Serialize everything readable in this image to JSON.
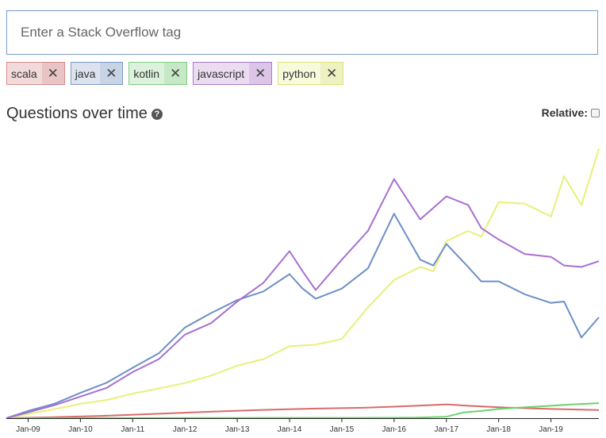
{
  "search": {
    "placeholder": "Enter a Stack Overflow tag"
  },
  "tags": [
    {
      "label": "scala",
      "bg": "#f2dada",
      "border": "#d98a8a",
      "xbg": "#e8c4c4"
    },
    {
      "label": "java",
      "bg": "#dce3ef",
      "border": "#7c9ac9",
      "xbg": "#c8d4e6"
    },
    {
      "label": "kotlin",
      "bg": "#dcf2dc",
      "border": "#7fce7f",
      "xbg": "#c6e8c6"
    },
    {
      "label": "javascript",
      "bg": "#ecdcf2",
      "border": "#a97cc9",
      "xbg": "#dcc5e8"
    },
    {
      "label": "python",
      "bg": "#f8fadc",
      "border": "#dde37a",
      "xbg": "#eef2c2"
    }
  ],
  "heading": {
    "title": "Questions over time",
    "help_icon": "question-circle-icon"
  },
  "relative": {
    "label": "Relative:",
    "checked": false
  },
  "chart_data": {
    "type": "line",
    "x_tick_labels": [
      "Jan-09",
      "Jan-10",
      "Jan-11",
      "Jan-12",
      "Jan-13",
      "Jan-14",
      "Jan-15",
      "Jan-16",
      "Jan-17",
      "Jan-18",
      "Jan-19"
    ],
    "xlim": [
      "2008-08",
      "2019-12"
    ],
    "ylim": [
      0,
      100
    ],
    "grid": false,
    "legend": "none",
    "series": [
      {
        "name": "scala",
        "color": "#d96b6b",
        "width": 2,
        "points": [
          [
            "2008-08",
            0
          ],
          [
            "2009-06",
            0.3
          ],
          [
            "2010-06",
            0.8
          ],
          [
            "2011-06",
            1.5
          ],
          [
            "2012-06",
            2.2
          ],
          [
            "2013-06",
            2.8
          ],
          [
            "2014-06",
            3.3
          ],
          [
            "2015-06",
            3.6
          ],
          [
            "2016-01",
            4
          ],
          [
            "2016-06",
            4.3
          ],
          [
            "2017-01",
            4.8
          ],
          [
            "2017-06",
            4.3
          ],
          [
            "2018-01",
            3.8
          ],
          [
            "2018-06",
            3.5
          ],
          [
            "2019-01",
            3.2
          ],
          [
            "2019-12",
            2.8
          ]
        ]
      },
      {
        "name": "kotlin",
        "color": "#6cd36c",
        "width": 2,
        "points": [
          [
            "2008-08",
            0
          ],
          [
            "2015-06",
            0.1
          ],
          [
            "2016-06",
            0.2
          ],
          [
            "2017-01",
            0.5
          ],
          [
            "2017-05",
            2
          ],
          [
            "2017-09",
            2.5
          ],
          [
            "2018-01",
            3.2
          ],
          [
            "2018-06",
            3.7
          ],
          [
            "2019-01",
            4.3
          ],
          [
            "2019-06",
            4.8
          ],
          [
            "2019-12",
            5.2
          ]
        ]
      },
      {
        "name": "python",
        "color": "#e8f07a",
        "width": 2,
        "points": [
          [
            "2008-08",
            0
          ],
          [
            "2009-01",
            1.5
          ],
          [
            "2009-07",
            3.1
          ],
          [
            "2010-01",
            5
          ],
          [
            "2010-07",
            6.3
          ],
          [
            "2011-01",
            8.5
          ],
          [
            "2011-07",
            10.3
          ],
          [
            "2012-01",
            12.2
          ],
          [
            "2012-07",
            14.8
          ],
          [
            "2013-01",
            18.2
          ],
          [
            "2013-07",
            20.5
          ],
          [
            "2014-01",
            25
          ],
          [
            "2014-07",
            25.5
          ],
          [
            "2015-01",
            27.5
          ],
          [
            "2015-07",
            38.5
          ],
          [
            "2016-01",
            48
          ],
          [
            "2016-07",
            52.5
          ],
          [
            "2016-10",
            51
          ],
          [
            "2017-01",
            61.5
          ],
          [
            "2017-06",
            65
          ],
          [
            "2017-09",
            63
          ],
          [
            "2018-01",
            75
          ],
          [
            "2018-07",
            74.5
          ],
          [
            "2019-01",
            70
          ],
          [
            "2019-04",
            84
          ],
          [
            "2019-08",
            74
          ],
          [
            "2019-12",
            93.5
          ]
        ]
      },
      {
        "name": "java",
        "color": "#6d8fc7",
        "width": 2,
        "points": [
          [
            "2008-08",
            0
          ],
          [
            "2009-01",
            2.5
          ],
          [
            "2009-07",
            5
          ],
          [
            "2010-01",
            8.8
          ],
          [
            "2010-07",
            12.3
          ],
          [
            "2011-01",
            17.5
          ],
          [
            "2011-07",
            22.5
          ],
          [
            "2012-01",
            31.5
          ],
          [
            "2012-07",
            36.5
          ],
          [
            "2013-01",
            41
          ],
          [
            "2013-07",
            44
          ],
          [
            "2014-01",
            50
          ],
          [
            "2014-04",
            45
          ],
          [
            "2014-07",
            41.5
          ],
          [
            "2015-01",
            45
          ],
          [
            "2015-07",
            52
          ],
          [
            "2016-01",
            71
          ],
          [
            "2016-07",
            55
          ],
          [
            "2016-10",
            53
          ],
          [
            "2017-01",
            60.5
          ],
          [
            "2017-06",
            52.5
          ],
          [
            "2017-09",
            47.5
          ],
          [
            "2018-01",
            47.5
          ],
          [
            "2018-07",
            43
          ],
          [
            "2019-01",
            40
          ],
          [
            "2019-04",
            40.5
          ],
          [
            "2019-08",
            28
          ],
          [
            "2019-12",
            35
          ]
        ]
      },
      {
        "name": "javascript",
        "color": "#a76fd1",
        "width": 2,
        "points": [
          [
            "2008-08",
            0
          ],
          [
            "2009-01",
            2
          ],
          [
            "2009-07",
            4.5
          ],
          [
            "2010-01",
            7.5
          ],
          [
            "2010-07",
            10.5
          ],
          [
            "2011-01",
            16
          ],
          [
            "2011-07",
            20.5
          ],
          [
            "2012-01",
            29
          ],
          [
            "2012-07",
            33
          ],
          [
            "2013-01",
            40.5
          ],
          [
            "2013-07",
            47
          ],
          [
            "2014-01",
            58
          ],
          [
            "2014-04",
            51
          ],
          [
            "2014-07",
            44.5
          ],
          [
            "2015-01",
            55
          ],
          [
            "2015-07",
            65
          ],
          [
            "2016-01",
            83
          ],
          [
            "2016-07",
            69
          ],
          [
            "2017-01",
            77
          ],
          [
            "2017-06",
            74
          ],
          [
            "2017-09",
            66
          ],
          [
            "2018-01",
            62
          ],
          [
            "2018-07",
            57
          ],
          [
            "2019-01",
            56
          ],
          [
            "2019-04",
            53
          ],
          [
            "2019-08",
            52.5
          ],
          [
            "2019-12",
            54.5
          ]
        ]
      }
    ]
  }
}
